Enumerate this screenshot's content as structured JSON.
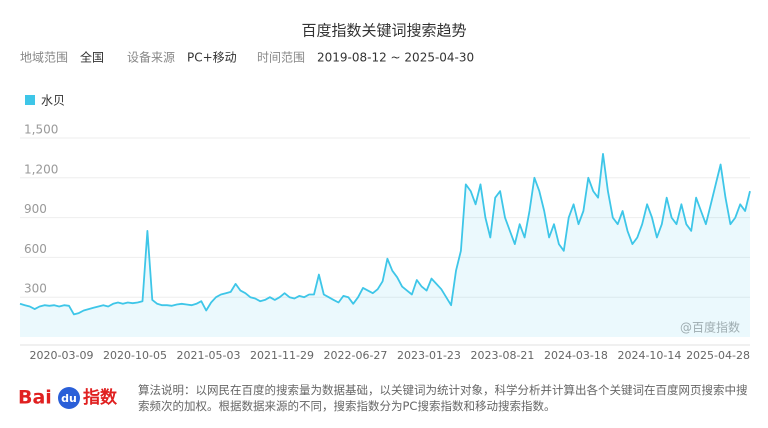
{
  "chart_data": {
    "type": "line",
    "title": "百度指数关键词搜索趋势",
    "filters": [
      {
        "label": "地域范围",
        "value": "全国"
      },
      {
        "label": "设备来源",
        "value": "PC+移动"
      },
      {
        "label": "时间范围",
        "value": "2019-08-12 ~ 2025-04-30"
      }
    ],
    "categories": [
      null,
      null,
      null,
      null,
      null,
      null,
      null,
      null,
      null,
      null,
      null,
      null,
      null,
      null,
      null,
      "2020-03-09",
      null,
      null,
      null,
      null,
      null,
      null,
      null,
      null,
      null,
      null,
      null,
      null,
      null,
      null,
      "2020-10-05",
      null,
      null,
      null,
      null,
      null,
      null,
      null,
      null,
      null,
      null,
      null,
      null,
      null,
      null,
      "2021-05-03",
      null,
      null,
      null,
      null,
      null,
      null,
      null,
      null,
      null,
      null,
      null,
      null,
      null,
      null,
      "2021-11-29",
      null,
      null,
      null,
      null,
      null,
      null,
      null,
      null,
      null,
      null,
      null,
      null,
      null,
      null,
      "2022-06-27",
      null,
      null,
      null,
      null,
      null,
      null,
      null,
      null,
      null,
      null,
      null,
      null,
      null,
      null,
      "2023-01-23",
      null,
      null,
      null,
      null,
      null,
      null,
      null,
      null,
      null,
      null,
      null,
      null,
      null,
      null,
      "2023-08-21",
      null,
      null,
      null,
      null,
      null,
      null,
      null,
      null,
      null,
      null,
      null,
      null,
      null,
      null,
      "2024-03-18",
      null,
      null,
      null,
      null,
      null,
      null,
      null,
      null,
      null,
      null,
      null,
      null,
      null,
      null,
      "2024-10-14",
      null,
      null,
      null,
      null,
      null,
      null,
      null,
      null,
      null,
      null,
      null,
      null,
      null,
      "2025-04-28"
    ],
    "series": [
      {
        "name": "水贝",
        "color": "#3ec6e8",
        "values": [
          250,
          240,
          230,
          210,
          230,
          240,
          235,
          240,
          230,
          240,
          235,
          170,
          180,
          200,
          210,
          220,
          230,
          240,
          230,
          250,
          260,
          250,
          260,
          255,
          260,
          270,
          800,
          280,
          250,
          240,
          240,
          235,
          245,
          250,
          245,
          240,
          250,
          270,
          200,
          260,
          300,
          320,
          330,
          340,
          400,
          350,
          330,
          300,
          290,
          270,
          280,
          300,
          280,
          300,
          330,
          300,
          290,
          310,
          300,
          320,
          320,
          470,
          320,
          300,
          280,
          260,
          310,
          300,
          250,
          300,
          370,
          350,
          330,
          360,
          420,
          590,
          500,
          450,
          380,
          350,
          320,
          430,
          380,
          350,
          440,
          400,
          360,
          300,
          240,
          500,
          650,
          1150,
          1100,
          1000,
          1150,
          900,
          750,
          1050,
          1100,
          900,
          800,
          700,
          850,
          750,
          950,
          1200,
          1100,
          950,
          750,
          850,
          700,
          650,
          900,
          1000,
          850,
          950,
          1200,
          1100,
          1050,
          1380,
          1100,
          900,
          850,
          950,
          800,
          700,
          750,
          850,
          1000,
          900,
          750,
          850,
          1050,
          900,
          850,
          1000,
          850,
          800,
          1050,
          950,
          850,
          1000,
          1150,
          1300,
          1050,
          850,
          900,
          1000,
          950,
          1100
        ]
      }
    ],
    "ylim": [
      0,
      1500
    ],
    "yticks": [
      300,
      600,
      900,
      {
        "value": 1200,
        "label": "1,200"
      },
      {
        "value": 1500,
        "label": "1,500"
      }
    ],
    "grid": true,
    "watermark": "@百度指数",
    "logo": [
      "Bai",
      "du",
      "指数"
    ],
    "note": "算法说明：以网民在百度的搜索量为数据基础，以关键词为统计对象，科学分析并计算出各个关键词在百度网页搜索中搜索频次的加权。根据数据来源的不同，搜索指数分为PC搜索指数和移动搜索指数。"
  }
}
